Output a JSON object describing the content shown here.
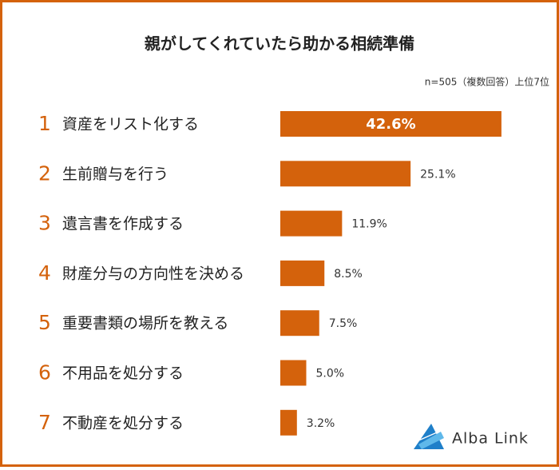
{
  "chart_data": {
    "type": "bar",
    "orientation": "horizontal",
    "title": "親がしてくれていたら助かる相続準備",
    "subtitle": "n=505（複数回答）上位7位",
    "ranks": [
      "1",
      "2",
      "3",
      "4",
      "5",
      "6",
      "7"
    ],
    "categories": [
      "資産をリスト化する",
      "生前贈与を行う",
      "遺言書を作成する",
      "財産分与の方向性を決める",
      "重要書類の場所を教える",
      "不用品を処分する",
      "不動産を処分する"
    ],
    "values": [
      42.6,
      25.1,
      11.9,
      8.5,
      7.5,
      5.0,
      3.2
    ],
    "value_labels": [
      "42.6%",
      "25.1%",
      "11.9%",
      "8.5%",
      "7.5%",
      "5.0%",
      "3.2%"
    ],
    "color": "#d4620c",
    "logo": "Alba Link"
  }
}
